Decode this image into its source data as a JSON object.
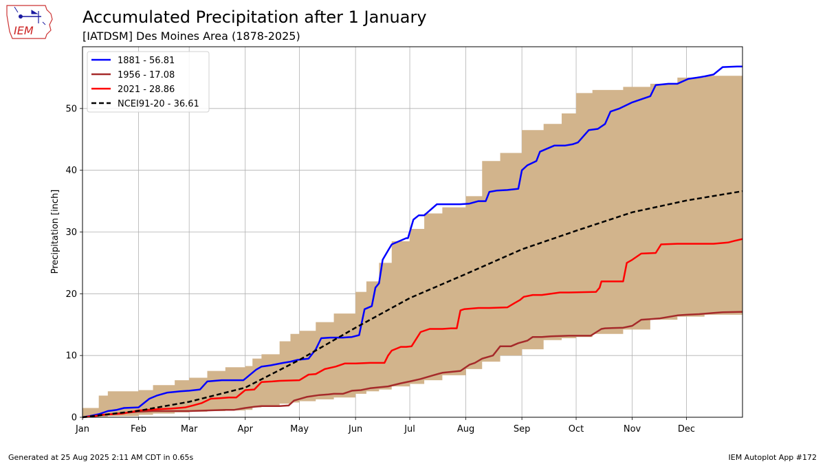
{
  "header": {
    "title": "Accumulated Precipitation after 1 January",
    "subtitle": "[IATDSM] Des Moines Area (1878-2025)"
  },
  "logo": {
    "text": "IEM",
    "icon": "iem-iowa-logo"
  },
  "footer": {
    "generated": "Generated at 25 Aug 2025 2:11 AM CDT in 0.65s",
    "app": "IEM Autoplot App #172"
  },
  "colors": {
    "band": "#d2b48c",
    "s1881": "#0000ff",
    "s1956": "#a52a2a",
    "s2021": "#ff0000",
    "climo": "#000000"
  },
  "chart_data": {
    "type": "line",
    "ylabel": "Precipitation [inch]",
    "xlim": [
      1,
      366
    ],
    "ylim": [
      0,
      60
    ],
    "grid": true,
    "legend_position": "top-left",
    "xticks": [
      {
        "day": 1,
        "label": "Jan"
      },
      {
        "day": 32,
        "label": "Feb"
      },
      {
        "day": 60,
        "label": "Mar"
      },
      {
        "day": 91,
        "label": "Apr"
      },
      {
        "day": 121,
        "label": "May"
      },
      {
        "day": 152,
        "label": "Jun"
      },
      {
        "day": 182,
        "label": "Jul"
      },
      {
        "day": 213,
        "label": "Aug"
      },
      {
        "day": 244,
        "label": "Sep"
      },
      {
        "day": 274,
        "label": "Oct"
      },
      {
        "day": 305,
        "label": "Nov"
      },
      {
        "day": 335,
        "label": "Dec"
      }
    ],
    "yticks": [
      0,
      10,
      20,
      30,
      40,
      50
    ],
    "range_band": {
      "day": [
        1,
        10,
        15,
        32,
        40,
        52,
        60,
        70,
        80,
        91,
        95,
        100,
        110,
        116,
        121,
        130,
        140,
        152,
        158,
        165,
        172,
        182,
        190,
        200,
        213,
        222,
        232,
        244,
        256,
        266,
        274,
        283,
        300,
        315,
        330,
        345,
        366
      ],
      "max": [
        1.5,
        3.5,
        4.2,
        4.4,
        5.2,
        6.0,
        6.4,
        7.5,
        8.1,
        8.3,
        9.5,
        10.2,
        12.3,
        13.5,
        14.0,
        15.4,
        16.8,
        20.3,
        22.0,
        25.0,
        28.5,
        30.5,
        33.0,
        34.0,
        35.8,
        41.5,
        42.8,
        46.5,
        47.5,
        49.2,
        52.5,
        53.0,
        53.5,
        54.0,
        55.0,
        55.3,
        56.8
      ],
      "min": [
        0.0,
        0.1,
        0.2,
        0.4,
        0.6,
        0.8,
        0.9,
        1.0,
        1.1,
        1.2,
        1.6,
        1.9,
        2.2,
        2.4,
        2.6,
        2.9,
        3.2,
        3.8,
        4.2,
        4.5,
        5.0,
        5.4,
        6.0,
        6.8,
        7.8,
        9.0,
        10.0,
        11.0,
        12.5,
        12.8,
        13.0,
        13.5,
        14.2,
        15.8,
        16.3,
        16.6,
        17.0
      ]
    },
    "series": [
      {
        "name": "1881 - 56.81",
        "color_key": "s1881",
        "day": [
          1,
          5,
          10,
          15,
          20,
          24,
          32,
          38,
          42,
          48,
          55,
          60,
          66,
          70,
          78,
          83,
          90,
          97,
          100,
          105,
          112,
          116,
          120,
          126,
          130,
          133,
          138,
          145,
          150,
          154,
          157,
          161,
          163,
          165,
          167,
          170,
          172,
          180,
          181,
          184,
          187,
          190,
          197,
          200,
          210,
          215,
          220,
          224,
          226,
          230,
          236,
          242,
          244,
          247,
          252,
          254,
          258,
          262,
          268,
          272,
          275,
          281,
          286,
          290,
          293,
          298,
          305,
          310,
          315,
          318,
          325,
          330,
          336,
          341,
          345,
          350,
          355,
          363,
          366
        ],
        "values": [
          0,
          0.2,
          0.5,
          1.0,
          1.2,
          1.5,
          1.6,
          3.0,
          3.5,
          4.0,
          4.2,
          4.3,
          4.5,
          5.8,
          6.0,
          6.0,
          6.0,
          7.7,
          8.2,
          8.4,
          8.8,
          9.0,
          9.3,
          9.5,
          11.0,
          12.8,
          12.9,
          12.9,
          13.0,
          13.3,
          17.5,
          18.0,
          21.0,
          21.7,
          25.5,
          27.0,
          28.0,
          29.0,
          29.0,
          32.0,
          32.7,
          32.7,
          34.5,
          34.5,
          34.5,
          34.6,
          35.0,
          35.0,
          36.5,
          36.7,
          36.8,
          37.0,
          40.0,
          40.8,
          41.5,
          43.0,
          43.5,
          44.0,
          44.0,
          44.2,
          44.5,
          46.5,
          46.7,
          47.5,
          49.5,
          50.0,
          51.0,
          51.5,
          52.0,
          53.8,
          54.0,
          54.0,
          54.8,
          55.0,
          55.2,
          55.5,
          56.7,
          56.8,
          56.81
        ]
      },
      {
        "name": "1956 - 17.08",
        "color_key": "s1956",
        "day": [
          1,
          10,
          20,
          28,
          32,
          40,
          50,
          55,
          60,
          70,
          80,
          85,
          91,
          96,
          100,
          105,
          110,
          115,
          118,
          125,
          132,
          137,
          140,
          145,
          150,
          155,
          160,
          170,
          177,
          182,
          188,
          195,
          200,
          210,
          215,
          218,
          222,
          228,
          232,
          238,
          242,
          247,
          250,
          255,
          260,
          270,
          282,
          288,
          290,
          300,
          305,
          310,
          315,
          320,
          330,
          335,
          342,
          350,
          355,
          366
        ],
        "values": [
          0,
          0.3,
          0.6,
          0.8,
          0.9,
          1.0,
          1.0,
          1.0,
          1.0,
          1.1,
          1.2,
          1.2,
          1.5,
          1.7,
          1.8,
          1.8,
          1.8,
          1.9,
          2.7,
          3.3,
          3.6,
          3.7,
          3.8,
          3.8,
          4.3,
          4.4,
          4.7,
          5.0,
          5.5,
          5.8,
          6.2,
          6.8,
          7.2,
          7.5,
          8.5,
          8.8,
          9.5,
          10.0,
          11.5,
          11.5,
          12.0,
          12.4,
          13.0,
          13.0,
          13.1,
          13.2,
          13.2,
          14.3,
          14.4,
          14.5,
          14.8,
          15.8,
          15.9,
          16.0,
          16.5,
          16.6,
          16.7,
          16.9,
          17.0,
          17.08
        ]
      },
      {
        "name": "2021 - 28.86",
        "color_key": "s2021",
        "day": [
          1,
          8,
          12,
          18,
          23,
          29,
          32,
          37,
          43,
          50,
          58,
          62,
          67,
          72,
          77,
          82,
          86,
          91,
          96,
          100,
          106,
          110,
          121,
          126,
          130,
          135,
          141,
          146,
          152,
          160,
          168,
          170,
          172,
          177,
          180,
          183,
          188,
          193,
          200,
          205,
          208,
          210,
          212,
          220,
          226,
          236,
          240,
          243,
          245,
          250,
          255,
          265,
          270,
          285,
          287,
          288,
          300,
          302,
          305,
          310,
          318,
          321,
          330,
          340,
          350,
          358,
          362,
          366
        ],
        "values": [
          0,
          0.2,
          0.4,
          0.5,
          0.6,
          0.9,
          1.1,
          1.2,
          1.3,
          1.4,
          1.6,
          1.9,
          2.3,
          3.0,
          3.1,
          3.2,
          3.2,
          4.4,
          4.5,
          5.7,
          5.8,
          5.9,
          6.0,
          6.9,
          7.0,
          7.8,
          8.2,
          8.7,
          8.7,
          8.8,
          8.8,
          10.0,
          10.8,
          11.4,
          11.4,
          11.5,
          13.8,
          14.3,
          14.3,
          14.4,
          14.4,
          17.3,
          17.5,
          17.7,
          17.7,
          17.8,
          18.5,
          19.0,
          19.5,
          19.8,
          19.8,
          20.2,
          20.2,
          20.3,
          21.0,
          22.0,
          22.0,
          25.0,
          25.5,
          26.5,
          26.6,
          28.0,
          28.1,
          28.1,
          28.1,
          28.3,
          28.6,
          28.86
        ]
      },
      {
        "name": "NCEI91-20 - 36.61",
        "color_key": "climo",
        "dashed": true,
        "day": [
          1,
          32,
          60,
          91,
          121,
          152,
          182,
          213,
          244,
          274,
          305,
          335,
          366
        ],
        "values": [
          0,
          1.05,
          2.5,
          4.8,
          9.3,
          14.5,
          19.3,
          23.2,
          27.2,
          30.2,
          33.2,
          35.1,
          36.61
        ]
      }
    ]
  }
}
